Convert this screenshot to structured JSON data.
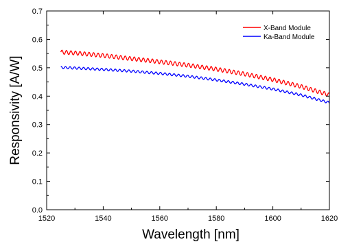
{
  "chart_data": {
    "type": "line",
    "title": "",
    "xlabel": "Wavelength  [nm]",
    "ylabel": "Responsivity  [A/W]",
    "xlim": [
      1520,
      1620
    ],
    "ylim": [
      0.0,
      0.7
    ],
    "xticks": [
      1520,
      1540,
      1560,
      1580,
      1600,
      1620
    ],
    "yticks": [
      0.0,
      0.1,
      0.2,
      0.3,
      0.4,
      0.5,
      0.6,
      0.7
    ],
    "xtick_labels": [
      "1520",
      "1540",
      "1560",
      "1580",
      "1600",
      "1620"
    ],
    "ytick_labels": [
      "0.0",
      "0.1",
      "0.2",
      "0.3",
      "0.4",
      "0.5",
      "0.6",
      "0.7"
    ],
    "grid": false,
    "legend_position": "top-right",
    "ripple_period_nm": 1.6,
    "series": [
      {
        "name": "X-Band Module",
        "color": "#ff0000",
        "x": [
          1525,
          1530,
          1540,
          1550,
          1560,
          1570,
          1580,
          1590,
          1600,
          1610,
          1620
        ],
        "y": [
          0.555,
          0.552,
          0.543,
          0.532,
          0.521,
          0.509,
          0.495,
          0.478,
          0.458,
          0.434,
          0.404
        ],
        "ripple_amplitude": 0.007
      },
      {
        "name": "Ka-Band Module",
        "color": "#0000ff",
        "x": [
          1525,
          1530,
          1540,
          1550,
          1560,
          1570,
          1580,
          1590,
          1600,
          1610,
          1620
        ],
        "y": [
          0.501,
          0.499,
          0.494,
          0.488,
          0.48,
          0.47,
          0.457,
          0.442,
          0.425,
          0.404,
          0.377
        ],
        "ripple_amplitude": 0.004
      }
    ]
  }
}
